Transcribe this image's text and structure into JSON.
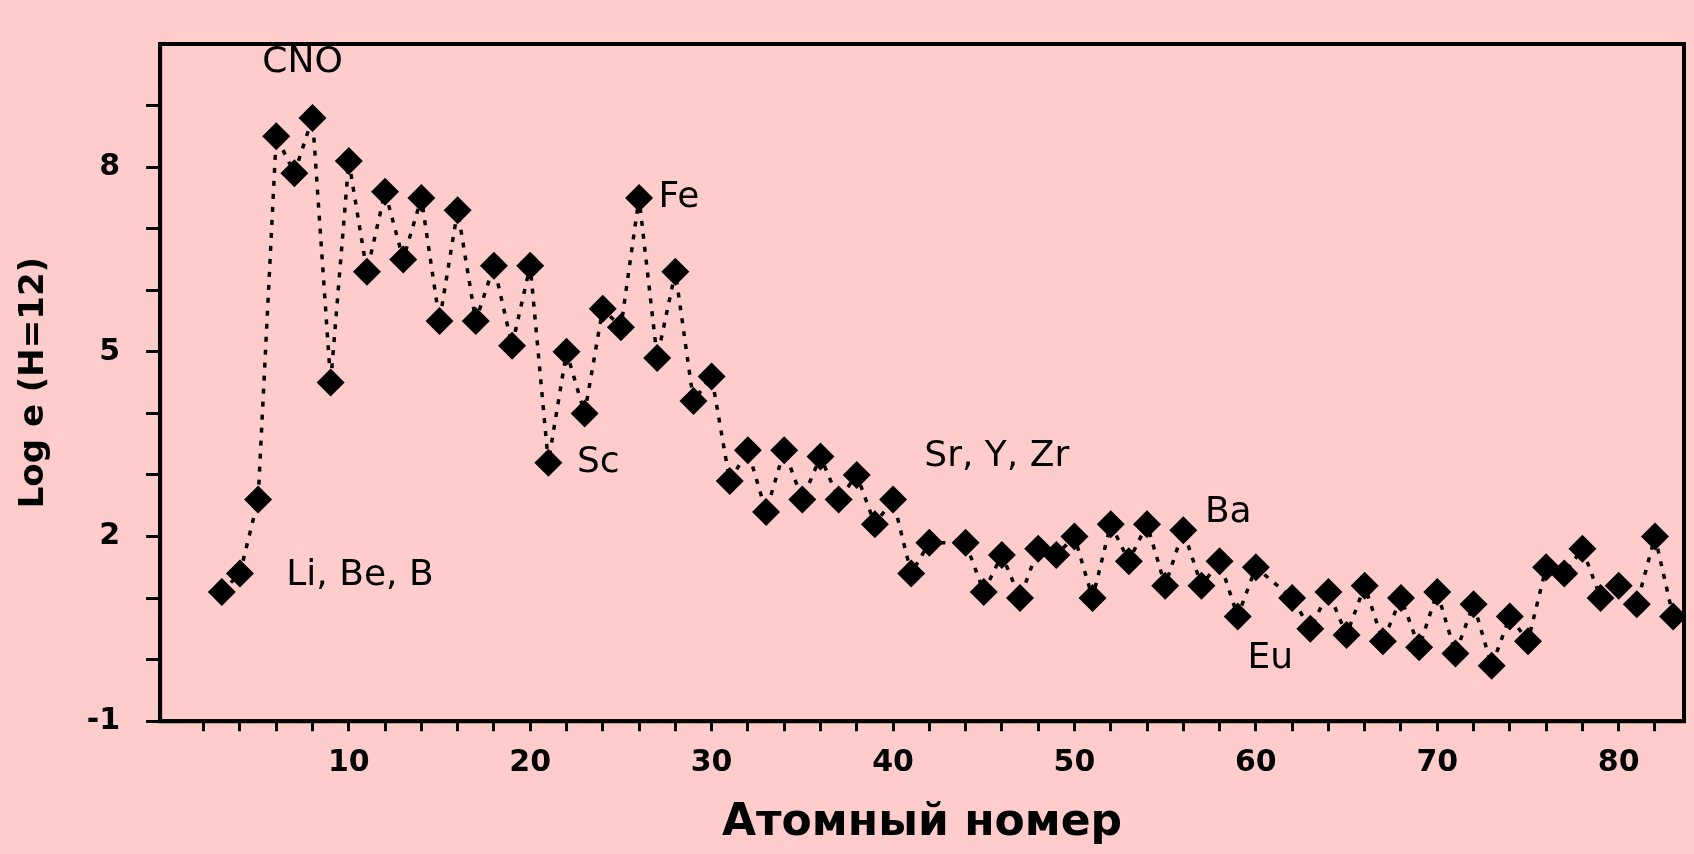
{
  "chart_data": {
    "type": "line",
    "xlabel": "Атомный номер",
    "ylabel": "Log e (H=12)",
    "x": [
      3,
      4,
      5,
      6,
      7,
      8,
      9,
      10,
      11,
      12,
      13,
      14,
      15,
      16,
      17,
      18,
      19,
      20,
      21,
      22,
      23,
      24,
      25,
      26,
      27,
      28,
      29,
      30,
      31,
      32,
      33,
      34,
      35,
      36,
      37,
      38,
      39,
      40,
      41,
      42,
      44,
      45,
      46,
      47,
      48,
      49,
      50,
      51,
      52,
      53,
      54,
      55,
      56,
      57,
      58,
      59,
      60,
      62,
      63,
      64,
      65,
      66,
      67,
      68,
      69,
      70,
      71,
      72,
      73,
      74,
      75,
      76,
      77,
      78,
      79,
      80,
      81,
      82,
      83
    ],
    "series": [
      {
        "color": "#000000",
        "values": [
          1.1,
          1.4,
          2.6,
          8.5,
          7.9,
          8.8,
          4.5,
          8.1,
          6.3,
          7.6,
          6.5,
          7.5,
          5.5,
          7.3,
          5.5,
          6.4,
          5.1,
          6.4,
          3.2,
          5.0,
          4.0,
          5.7,
          5.4,
          7.5,
          4.9,
          6.3,
          4.2,
          4.6,
          2.9,
          3.4,
          2.4,
          3.4,
          2.6,
          3.3,
          2.6,
          3.0,
          2.2,
          2.6,
          1.4,
          1.9,
          1.9,
          1.1,
          1.7,
          1.0,
          1.8,
          1.7,
          2.0,
          1.0,
          2.2,
          1.6,
          2.2,
          1.2,
          2.1,
          1.2,
          1.6,
          0.7,
          1.5,
          1.0,
          0.5,
          1.1,
          0.4,
          1.2,
          0.3,
          1.0,
          0.2,
          1.1,
          0.1,
          0.9,
          -0.1,
          0.7,
          0.3,
          1.5,
          1.4,
          1.8,
          1.0,
          1.2,
          0.9,
          2.0,
          0.7
        ]
      }
    ],
    "marker": "diamond",
    "line_style": "dotted",
    "grid": false,
    "legend": false,
    "xlim": [
      -0.4,
      83.6
    ],
    "xticks": [
      {
        "value": 2,
        "label": null
      },
      {
        "value": 4,
        "label": null
      },
      {
        "value": 6,
        "label": null
      },
      {
        "value": 8,
        "label": null
      },
      10,
      {
        "value": 12,
        "label": null
      },
      {
        "value": 14,
        "label": null
      },
      {
        "value": 16,
        "label": null
      },
      {
        "value": 18,
        "label": null
      },
      20,
      {
        "value": 22,
        "label": null
      },
      {
        "value": 24,
        "label": null
      },
      {
        "value": 26,
        "label": null
      },
      {
        "value": 28,
        "label": null
      },
      30,
      {
        "value": 32,
        "label": null
      },
      {
        "value": 34,
        "label": null
      },
      {
        "value": 36,
        "label": null
      },
      {
        "value": 38,
        "label": null
      },
      40,
      {
        "value": 42,
        "label": null
      },
      {
        "value": 44,
        "label": null
      },
      {
        "value": 46,
        "label": null
      },
      {
        "value": 48,
        "label": null
      },
      50,
      {
        "value": 52,
        "label": null
      },
      {
        "value": 54,
        "label": null
      },
      {
        "value": 56,
        "label": null
      },
      {
        "value": 58,
        "label": null
      },
      60,
      {
        "value": 62,
        "label": null
      },
      {
        "value": 64,
        "label": null
      },
      {
        "value": 66,
        "label": null
      },
      {
        "value": 68,
        "label": null
      },
      70,
      {
        "value": 72,
        "label": null
      },
      {
        "value": 74,
        "label": null
      },
      {
        "value": 76,
        "label": null
      },
      {
        "value": 78,
        "label": null
      },
      80,
      {
        "value": 82,
        "label": null
      }
    ],
    "ylim": [
      -1,
      10
    ],
    "yticks": [
      -1,
      {
        "value": 0,
        "label": null
      },
      {
        "value": 1,
        "label": null
      },
      2,
      {
        "value": 3,
        "label": null
      },
      {
        "value": 4,
        "label": null
      },
      5,
      {
        "value": 6,
        "label": null
      },
      {
        "value": 7,
        "label": null
      },
      8,
      {
        "value": 9,
        "label": null
      }
    ],
    "annotations": [
      {
        "text": "CNO",
        "x": 8,
        "y": 8.8
      },
      {
        "text": "Li, Be, B",
        "x": 4,
        "y": 1.4
      },
      {
        "text": "Sc",
        "x": 21,
        "y": 3.2
      },
      {
        "text": "Fe",
        "x": 26,
        "y": 7.5
      },
      {
        "text": "Sr, Y, Zr",
        "x": 38,
        "y": 3.0
      },
      {
        "text": "Ba",
        "x": 56,
        "y": 2.1
      },
      {
        "text": "Eu",
        "x": 63,
        "y": 0.5
      }
    ]
  }
}
